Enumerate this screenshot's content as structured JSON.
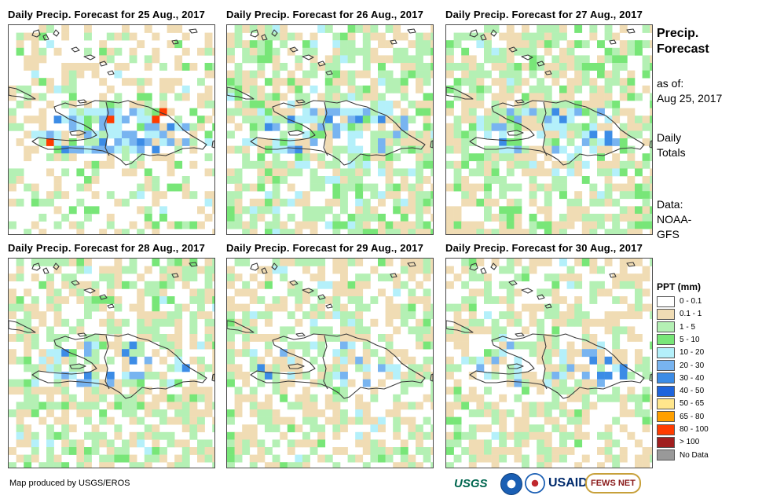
{
  "panels": [
    {
      "title": "Daily Precip. Forecast for 25 Aug., 2017",
      "date": "25 Aug., 2017"
    },
    {
      "title": "Daily Precip. Forecast for 26 Aug., 2017",
      "date": "26 Aug., 2017"
    },
    {
      "title": "Daily Precip. Forecast for 27 Aug., 2017",
      "date": "27 Aug., 2017"
    },
    {
      "title": "Daily Precip. Forecast for 28 Aug., 2017",
      "date": "28 Aug., 2017"
    },
    {
      "title": "Daily Precip. Forecast for 29 Aug., 2017",
      "date": "29 Aug., 2017"
    },
    {
      "title": "Daily Precip. Forecast for 30 Aug., 2017",
      "date": "30 Aug., 2017"
    }
  ],
  "side": {
    "heading_line1": "Precip.",
    "heading_line2": "Forecast",
    "asof_label": "as of:",
    "asof_date": "Aug 25, 2017",
    "totals_line1": "Daily",
    "totals_line2": "Totals",
    "data_line1": "Data:",
    "data_line2": "NOAA-",
    "data_line3": "GFS"
  },
  "legend": {
    "title": "PPT (mm)",
    "items": [
      {
        "label": "0 - 0.1",
        "color": "#ffffff"
      },
      {
        "label": "0.1 - 1",
        "color": "#f0dcb4"
      },
      {
        "label": "1 - 5",
        "color": "#b4f0b4"
      },
      {
        "label": "5 - 10",
        "color": "#78e678"
      },
      {
        "label": "10 - 20",
        "color": "#b4f0fa"
      },
      {
        "label": "20 - 30",
        "color": "#78b4f0"
      },
      {
        "label": "30 - 40",
        "color": "#3c8ce6"
      },
      {
        "label": "40 - 50",
        "color": "#1e64dc"
      },
      {
        "label": "50 - 65",
        "color": "#ffe68c"
      },
      {
        "label": "65 - 80",
        "color": "#ffa000"
      },
      {
        "label": "80 - 100",
        "color": "#ff3c00"
      },
      {
        "label": "> 100",
        "color": "#a01e1e"
      },
      {
        "label": "No Data",
        "color": "#999999"
      }
    ]
  },
  "footer": {
    "credit": "Map produced by USGS/EROS",
    "logos": [
      "USGS",
      "NOAA",
      "NWS",
      "USAID",
      "FEWS NET"
    ]
  }
}
